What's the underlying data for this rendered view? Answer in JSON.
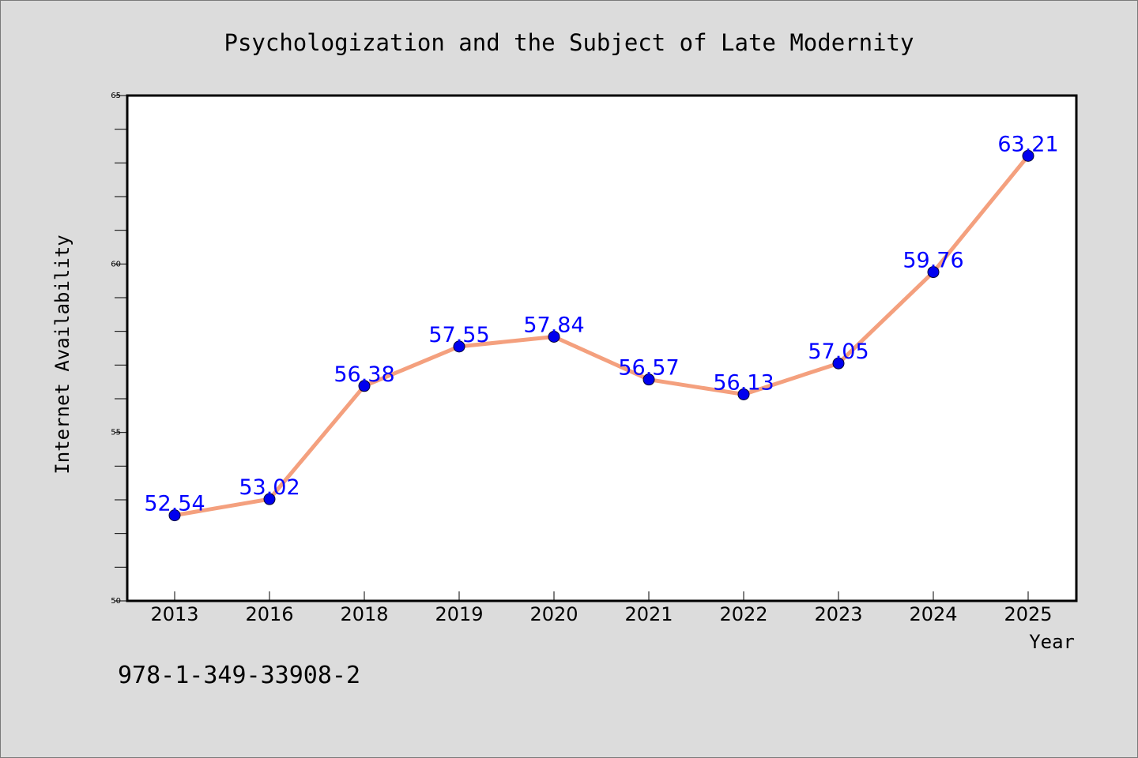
{
  "chart_data": {
    "type": "line",
    "title": "Psychologization and the Subject of Late Modernity",
    "xlabel": "Year",
    "ylabel": "Internet Availability",
    "categories": [
      "2013",
      "2016",
      "2018",
      "2019",
      "2020",
      "2021",
      "2022",
      "2023",
      "2024",
      "2025"
    ],
    "values": [
      52.54,
      53.02,
      56.38,
      57.55,
      57.84,
      56.57,
      56.13,
      57.05,
      59.76,
      63.21
    ],
    "data_labels": [
      "52.54",
      "53.02",
      "56.38",
      "57.55",
      "57.84",
      "56.57",
      "56.13",
      "57.05",
      "59.76",
      "63.21"
    ],
    "ylim": [
      50,
      65
    ],
    "yticks": [
      "50",
      "55",
      "60",
      "65"
    ],
    "grid": false,
    "line_color": "#f4a07e",
    "marker_color": "#0000ee",
    "label_color": "#0000ff"
  },
  "footer": {
    "isbn": "978-1-349-33908-2"
  }
}
